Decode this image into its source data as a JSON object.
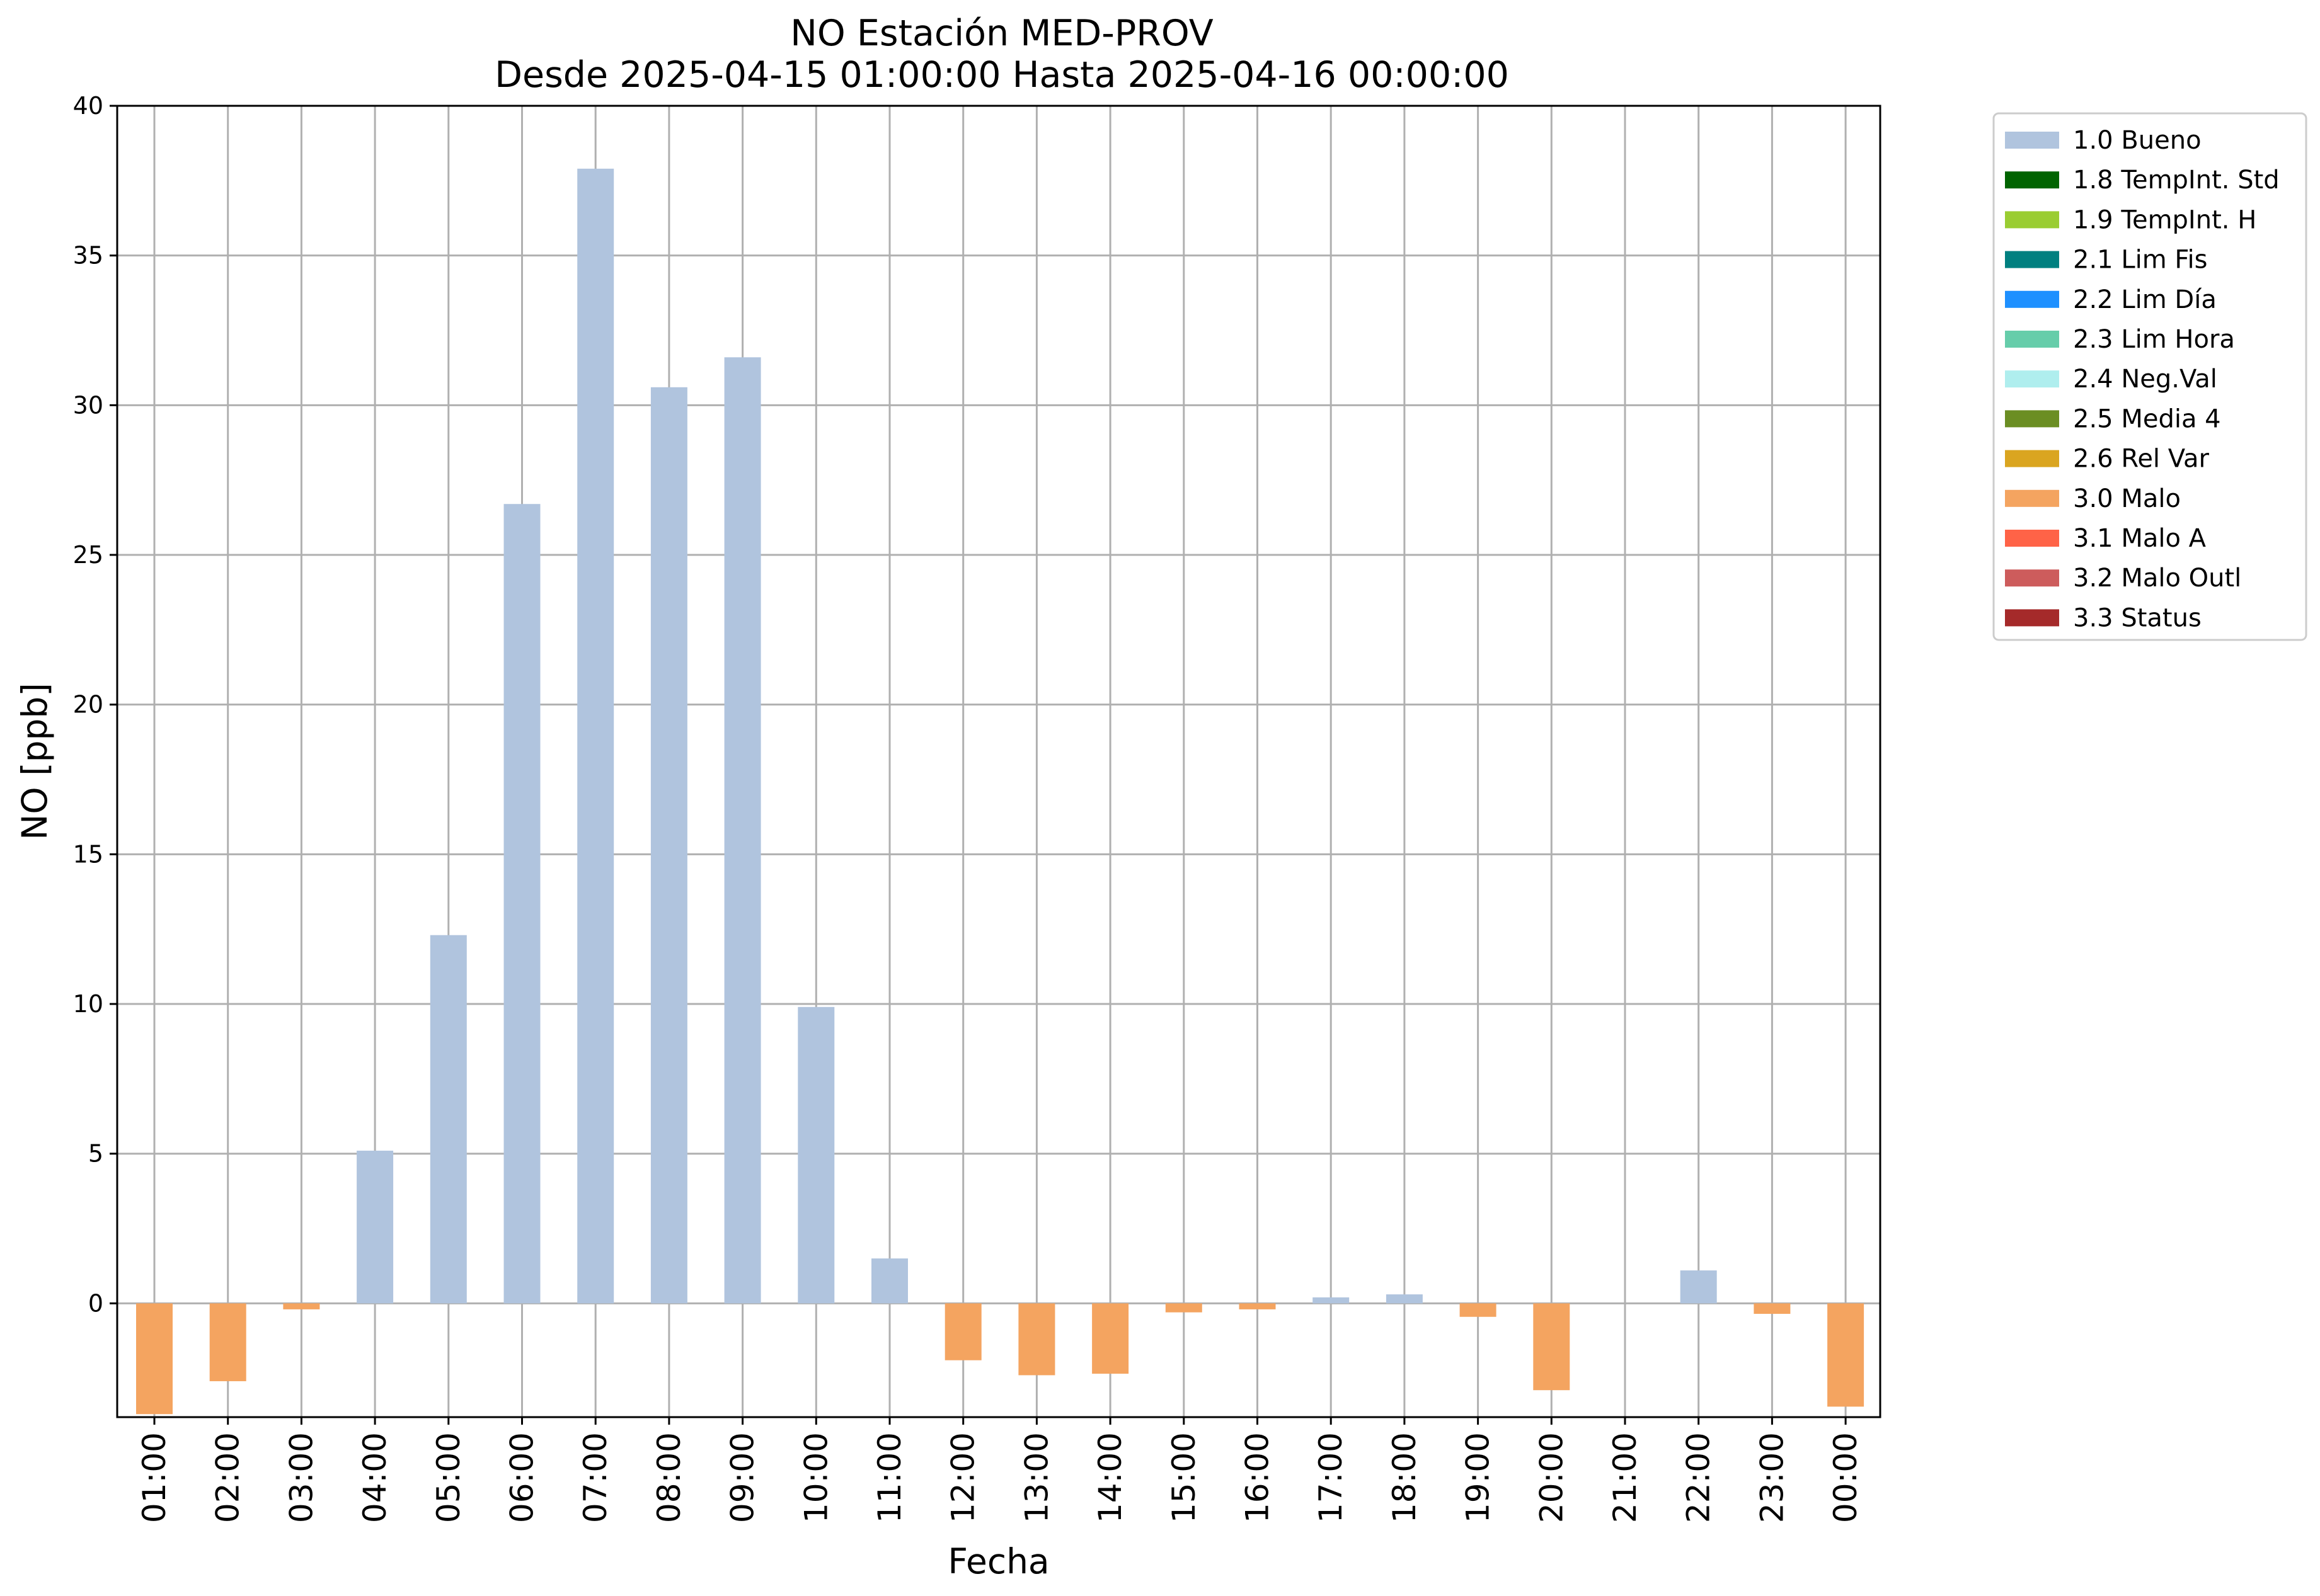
{
  "chart_data": {
    "type": "bar",
    "title": "NO Estación MED-PROV",
    "subtitle": "Desde 2025-04-15 01:00:00 Hasta 2025-04-16 00:00:00",
    "xlabel": "Fecha",
    "ylabel": "NO [ppb]",
    "ylim": [
      -3.8,
      40
    ],
    "yticks": [
      "0",
      "5",
      "10",
      "15",
      "20",
      "25",
      "30",
      "35",
      "40"
    ],
    "grid": true,
    "legend_position": "outside-top-right",
    "categories": [
      "01:00",
      "02:00",
      "03:00",
      "04:00",
      "05:00",
      "06:00",
      "07:00",
      "08:00",
      "09:00",
      "10:00",
      "11:00",
      "12:00",
      "13:00",
      "14:00",
      "15:00",
      "16:00",
      "17:00",
      "18:00",
      "19:00",
      "20:00",
      "21:00",
      "22:00",
      "23:00",
      "00:00"
    ],
    "values": [
      -3.7,
      -2.6,
      -0.2,
      5.1,
      12.3,
      26.7,
      37.9,
      30.6,
      31.6,
      9.9,
      1.5,
      -1.9,
      -2.4,
      -2.35,
      -0.3,
      -0.2,
      0.2,
      0.3,
      -0.45,
      -2.9,
      null,
      1.1,
      -0.35,
      -3.45
    ],
    "flags": [
      "3.0 Malo",
      "3.0 Malo",
      "3.0 Malo",
      "1.0 Bueno",
      "1.0 Bueno",
      "1.0 Bueno",
      "1.0 Bueno",
      "1.0 Bueno",
      "1.0 Bueno",
      "1.0 Bueno",
      "1.0 Bueno",
      "3.0 Malo",
      "3.0 Malo",
      "3.0 Malo",
      "3.0 Malo",
      "3.0 Malo",
      "1.0 Bueno",
      "1.0 Bueno",
      "3.0 Malo",
      "3.0 Malo",
      null,
      "1.0 Bueno",
      "3.0 Malo",
      "3.0 Malo"
    ],
    "legend": [
      {
        "label": "1.0 Bueno",
        "color": "#b0c4de"
      },
      {
        "label": "1.8 TempInt. Std",
        "color": "#006400"
      },
      {
        "label": "1.9 TempInt. H",
        "color": "#9acd32"
      },
      {
        "label": "2.1 Lim Fis",
        "color": "#008080"
      },
      {
        "label": "2.2 Lim Día",
        "color": "#1e90ff"
      },
      {
        "label": "2.3 Lim Hora",
        "color": "#66cdaa"
      },
      {
        "label": "2.4 Neg.Val",
        "color": "#afeeee"
      },
      {
        "label": "2.5 Media 4",
        "color": "#6b8e23"
      },
      {
        "label": "2.6 Rel Var",
        "color": "#daa520"
      },
      {
        "label": "3.0 Malo",
        "color": "#f4a460"
      },
      {
        "label": "3.1 Malo A",
        "color": "#ff6347"
      },
      {
        "label": "3.2 Malo Outl",
        "color": "#cd5c5c"
      },
      {
        "label": "3.3 Status",
        "color": "#a52a2a"
      }
    ]
  }
}
